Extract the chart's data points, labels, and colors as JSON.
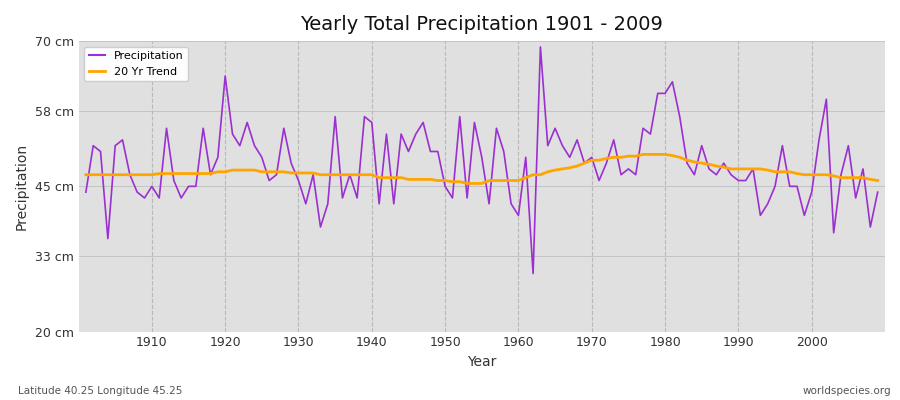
{
  "title": "Yearly Total Precipitation 1901 - 2009",
  "xlabel": "Year",
  "ylabel": "Precipitation",
  "subtitle_left": "Latitude 40.25 Longitude 45.25",
  "subtitle_right": "worldspecies.org",
  "ylim": [
    20,
    70
  ],
  "yticks": [
    20,
    33,
    45,
    58,
    70
  ],
  "ytick_labels": [
    "20 cm",
    "33 cm",
    "45 cm",
    "58 cm",
    "70 cm"
  ],
  "precip_color": "#9b30d0",
  "trend_color": "#ffa500",
  "fig_bg": "#e8e8e8",
  "plot_bg": "#d8d8d8",
  "years": [
    1901,
    1902,
    1903,
    1904,
    1905,
    1906,
    1907,
    1908,
    1909,
    1910,
    1911,
    1912,
    1913,
    1914,
    1915,
    1916,
    1917,
    1918,
    1919,
    1920,
    1921,
    1922,
    1923,
    1924,
    1925,
    1926,
    1927,
    1928,
    1929,
    1930,
    1931,
    1932,
    1933,
    1934,
    1935,
    1936,
    1937,
    1938,
    1939,
    1940,
    1941,
    1942,
    1943,
    1944,
    1945,
    1946,
    1947,
    1948,
    1949,
    1950,
    1951,
    1952,
    1953,
    1954,
    1955,
    1956,
    1957,
    1958,
    1959,
    1960,
    1961,
    1962,
    1963,
    1964,
    1965,
    1966,
    1967,
    1968,
    1969,
    1970,
    1971,
    1972,
    1973,
    1974,
    1975,
    1976,
    1977,
    1978,
    1979,
    1980,
    1981,
    1982,
    1983,
    1984,
    1985,
    1986,
    1987,
    1988,
    1989,
    1990,
    1991,
    1992,
    1993,
    1994,
    1995,
    1996,
    1997,
    1998,
    1999,
    2000,
    2001,
    2002,
    2003,
    2004,
    2005,
    2006,
    2007,
    2008,
    2009
  ],
  "precip": [
    44,
    52,
    51,
    36,
    52,
    53,
    47,
    44,
    43,
    45,
    43,
    55,
    46,
    43,
    45,
    45,
    55,
    47,
    50,
    64,
    54,
    52,
    56,
    52,
    50,
    46,
    47,
    55,
    49,
    46,
    42,
    47,
    38,
    42,
    57,
    43,
    47,
    43,
    57,
    56,
    42,
    54,
    42,
    54,
    51,
    54,
    56,
    51,
    51,
    45,
    43,
    57,
    43,
    56,
    50,
    42,
    55,
    51,
    42,
    40,
    50,
    30,
    69,
    52,
    55,
    52,
    50,
    53,
    49,
    50,
    46,
    49,
    53,
    47,
    48,
    47,
    55,
    54,
    61,
    61,
    63,
    57,
    49,
    47,
    52,
    48,
    47,
    49,
    47,
    46,
    46,
    48,
    40,
    42,
    45,
    52,
    45,
    45,
    40,
    44,
    53,
    60,
    37,
    47,
    52,
    43,
    48,
    38,
    44
  ],
  "trend": [
    47.0,
    47.0,
    47.0,
    47.0,
    47.0,
    47.0,
    47.0,
    47.0,
    47.0,
    47.0,
    47.2,
    47.2,
    47.2,
    47.2,
    47.2,
    47.2,
    47.2,
    47.2,
    47.5,
    47.5,
    47.8,
    47.8,
    47.8,
    47.8,
    47.5,
    47.5,
    47.5,
    47.5,
    47.3,
    47.3,
    47.3,
    47.3,
    47.0,
    47.0,
    47.0,
    47.0,
    47.0,
    47.0,
    47.0,
    47.0,
    46.5,
    46.5,
    46.5,
    46.5,
    46.2,
    46.2,
    46.2,
    46.2,
    46.0,
    46.0,
    45.8,
    45.8,
    45.5,
    45.5,
    45.5,
    46.0,
    46.0,
    46.0,
    46.0,
    46.0,
    46.5,
    47.0,
    47.0,
    47.5,
    47.8,
    48.0,
    48.2,
    48.5,
    49.0,
    49.5,
    49.5,
    49.8,
    50.0,
    50.0,
    50.2,
    50.2,
    50.5,
    50.5,
    50.5,
    50.5,
    50.3,
    50.0,
    49.5,
    49.2,
    49.0,
    48.8,
    48.5,
    48.3,
    48.0,
    48.0,
    48.0,
    48.0,
    48.0,
    47.8,
    47.5,
    47.5,
    47.5,
    47.2,
    47.0,
    47.0,
    47.0,
    47.0,
    46.8,
    46.5,
    46.5,
    46.5,
    46.5,
    46.2,
    46.0
  ]
}
